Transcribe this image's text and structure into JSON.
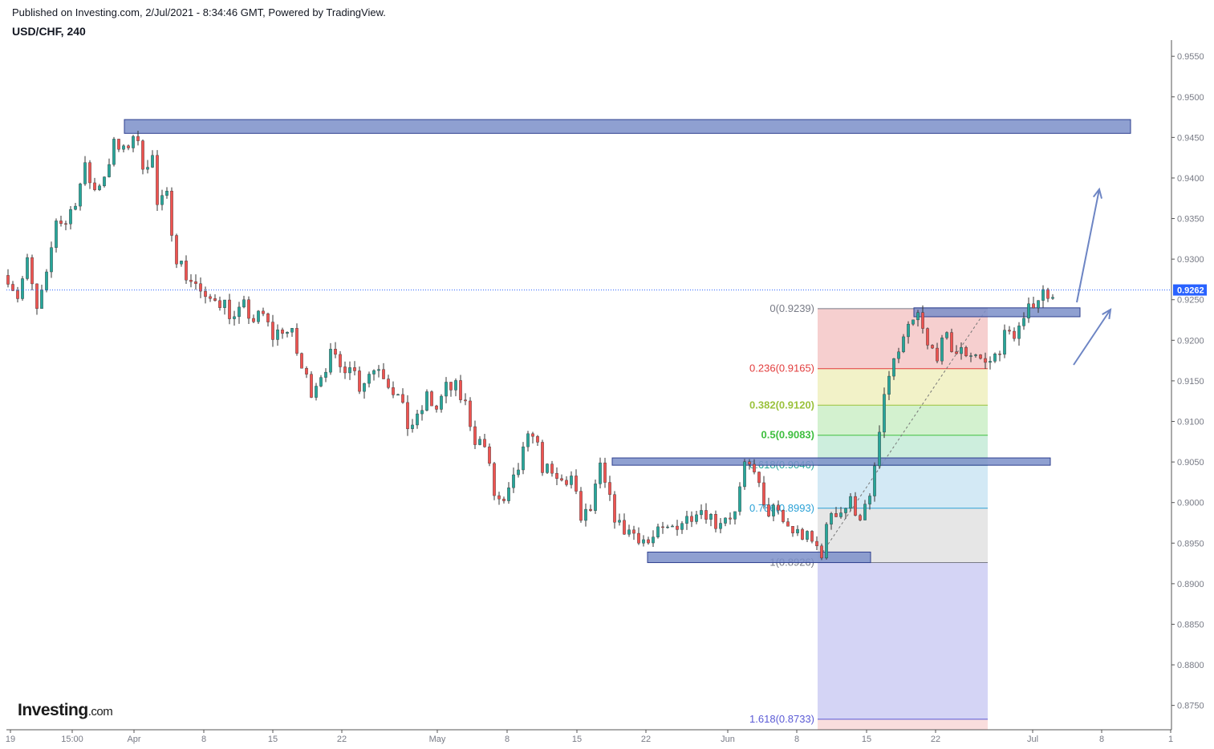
{
  "header": {
    "published": "Published on Investing.com, 2/Jul/2021 - 8:34:46 GMT, Powered by TradingView.",
    "symbol": "USD/CHF, 240"
  },
  "logo": {
    "brand": "Investing",
    "suffix": ".com"
  },
  "colors": {
    "up": "#26a69a",
    "down": "#ef5350",
    "wick": "#333333",
    "zone_fill": "#7b8fc9",
    "zone_stroke": "#2e3f8f",
    "arrow": "#6d85c4",
    "last_price_bg": "#2962ff",
    "grid_tick": "#787b86"
  },
  "chart_data": {
    "type": "candlestick",
    "title": "USD/CHF, 240",
    "y_axis": {
      "min": 0.872,
      "max": 0.9565,
      "ticks": [
        "0.9550",
        "0.9500",
        "0.9450",
        "0.9400",
        "0.9350",
        "0.9300",
        "0.9250",
        "0.9200",
        "0.9150",
        "0.9100",
        "0.9050",
        "0.9000",
        "0.8950",
        "0.8900",
        "0.8850",
        "0.8800",
        "0.8750"
      ],
      "position": "right"
    },
    "x_axis": {
      "labels": [
        "19",
        "15:00",
        "Apr",
        "8",
        "15",
        "22",
        "May",
        "8",
        "15",
        "22",
        "Jun",
        "8",
        "15",
        "22",
        "Jul",
        "8",
        "1"
      ]
    },
    "last_price": "0.9262",
    "price_path": [
      [
        0,
        0.928
      ],
      [
        2,
        0.9255
      ],
      [
        4,
        0.9295
      ],
      [
        6,
        0.9235
      ],
      [
        8,
        0.9275
      ],
      [
        10,
        0.935
      ],
      [
        12,
        0.9345
      ],
      [
        14,
        0.9375
      ],
      [
        16,
        0.941
      ],
      [
        18,
        0.9385
      ],
      [
        20,
        0.9405
      ],
      [
        22,
        0.944
      ],
      [
        24,
        0.943
      ],
      [
        26,
        0.9455
      ],
      [
        28,
        0.942
      ],
      [
        30,
        0.9425
      ],
      [
        31,
        0.9365
      ],
      [
        33,
        0.9375
      ],
      [
        35,
        0.9305
      ],
      [
        37,
        0.928
      ],
      [
        39,
        0.927
      ],
      [
        41,
        0.9245
      ],
      [
        43,
        0.9255
      ],
      [
        45,
        0.9245
      ],
      [
        47,
        0.9225
      ],
      [
        49,
        0.924
      ],
      [
        51,
        0.9225
      ],
      [
        53,
        0.923
      ],
      [
        55,
        0.9205
      ],
      [
        57,
        0.9215
      ],
      [
        59,
        0.9205
      ],
      [
        61,
        0.9165
      ],
      [
        63,
        0.914
      ],
      [
        65,
        0.916
      ],
      [
        67,
        0.918
      ],
      [
        69,
        0.9165
      ],
      [
        71,
        0.9175
      ],
      [
        73,
        0.9145
      ],
      [
        75,
        0.916
      ],
      [
        77,
        0.917
      ],
      [
        79,
        0.915
      ],
      [
        81,
        0.913
      ],
      [
        83,
        0.9095
      ],
      [
        85,
        0.91
      ],
      [
        87,
        0.913
      ],
      [
        89,
        0.9115
      ],
      [
        91,
        0.914
      ],
      [
        93,
        0.914
      ],
      [
        95,
        0.912
      ],
      [
        97,
        0.908
      ],
      [
        99,
        0.907
      ],
      [
        101,
        0.901
      ],
      [
        103,
        0.8995
      ],
      [
        105,
        0.9025
      ],
      [
        107,
        0.906
      ],
      [
        109,
        0.909
      ],
      [
        111,
        0.9045
      ],
      [
        113,
        0.903
      ],
      [
        115,
        0.9025
      ],
      [
        117,
        0.903
      ],
      [
        119,
        0.898
      ],
      [
        121,
        0.899
      ],
      [
        123,
        0.904
      ],
      [
        125,
        0.9
      ],
      [
        127,
        0.897
      ],
      [
        129,
        0.8965
      ],
      [
        131,
        0.896
      ],
      [
        133,
        0.895
      ],
      [
        135,
        0.896
      ],
      [
        137,
        0.8965
      ],
      [
        139,
        0.8975
      ],
      [
        141,
        0.898
      ],
      [
        143,
        0.8995
      ],
      [
        145,
        0.899
      ],
      [
        147,
        0.8975
      ],
      [
        149,
        0.8985
      ],
      [
        151,
        0.8985
      ],
      [
        153,
        0.904
      ],
      [
        155,
        0.9045
      ],
      [
        157,
        0.899
      ],
      [
        159,
        0.899
      ],
      [
        161,
        0.8975
      ],
      [
        163,
        0.8965
      ],
      [
        165,
        0.896
      ],
      [
        167,
        0.895
      ],
      [
        169,
        0.894
      ],
      [
        171,
        0.899
      ],
      [
        173,
        0.899
      ],
      [
        175,
        0.9
      ],
      [
        177,
        0.8985
      ],
      [
        179,
        0.9
      ],
      [
        181,
        0.9085
      ],
      [
        183,
        0.916
      ],
      [
        185,
        0.9185
      ],
      [
        187,
        0.921
      ],
      [
        189,
        0.923
      ],
      [
        191,
        0.919
      ],
      [
        193,
        0.9185
      ],
      [
        195,
        0.92
      ],
      [
        197,
        0.9185
      ],
      [
        199,
        0.9185
      ],
      [
        201,
        0.9185
      ],
      [
        203,
        0.917
      ],
      [
        205,
        0.918
      ],
      [
        207,
        0.9205
      ],
      [
        209,
        0.921
      ],
      [
        211,
        0.922
      ],
      [
        213,
        0.925
      ],
      [
        215,
        0.9258
      ],
      [
        217,
        0.9262
      ]
    ],
    "fibonacci": {
      "levels": [
        {
          "label": "0(0.9239)",
          "ratio": "0",
          "price": 0.9239,
          "color": "#787b86"
        },
        {
          "label": "0.236(0.9165)",
          "ratio": "0.236",
          "price": 0.9165,
          "color": "#e23d3d"
        },
        {
          "label": "0.382(0.9120)",
          "ratio": "0.382",
          "price": 0.912,
          "color": "#9bc23c"
        },
        {
          "label": "0.5(0.9083)",
          "ratio": "0.5",
          "price": 0.9083,
          "color": "#3fbf3f"
        },
        {
          "label": "0.618(0.9046)",
          "ratio": "0.618",
          "price": 0.9046,
          "color": "#26a69a"
        },
        {
          "label": "0.786(0.8993)",
          "ratio": "0.786",
          "price": 0.8993,
          "color": "#2aa1d6"
        },
        {
          "label": "1(0.8926)",
          "ratio": "1",
          "price": 0.8926,
          "color": "#787b86"
        },
        {
          "label": "1.618(0.8733)",
          "ratio": "1.618",
          "price": 0.8733,
          "color": "#5b5bd6"
        }
      ]
    },
    "zones": [
      {
        "name": "resistance-zone-top",
        "y_low": 0.9455,
        "y_high": 0.9472
      },
      {
        "name": "support-zone-0.9050",
        "y_low": 0.9046,
        "y_high": 0.9055
      },
      {
        "name": "support-zone-0.8930",
        "y_low": 0.8926,
        "y_high": 0.8939
      },
      {
        "name": "breakout-zone-0.9235",
        "y_low": 0.9229,
        "y_high": 0.924
      }
    ],
    "grid": false,
    "legend": "none"
  }
}
